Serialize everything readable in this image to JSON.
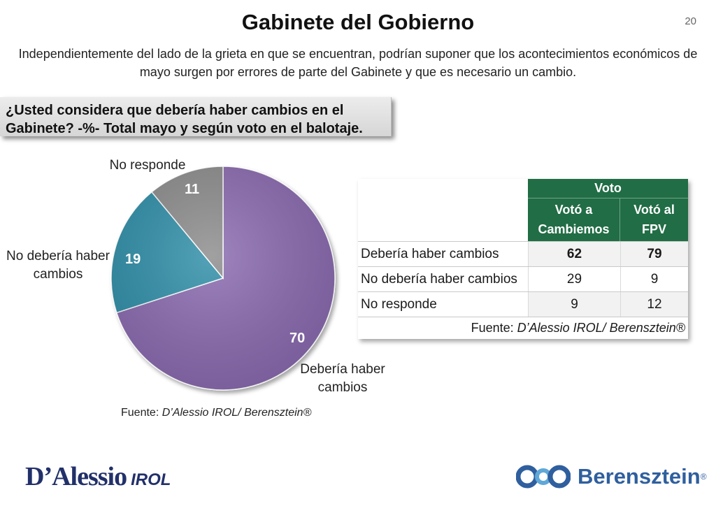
{
  "header": {
    "title": "Gabinete del Gobierno",
    "page_number": "20",
    "subtitle": "Independientemente del lado de la grieta en que se encuentran,  podrían suponer que los acontecimientos económicos de mayo surgen por errores de parte del Gabinete y que es necesario un cambio."
  },
  "question": "¿Usted considera que debería haber cambios en el Gabinete? -%- Total mayo y según voto en el balotaje.",
  "pie": {
    "labels": {
      "no_responde": "No responde",
      "no_deberia": "No debería haber cambios",
      "deberia": "Debería haber cambios"
    },
    "values_text": {
      "deberia": "70",
      "no_deberia": "19",
      "no_responde": "11"
    },
    "source_prefix": "Fuente: ",
    "source_name": "D’Alessio IROL/ Berensztein®"
  },
  "chart_data": [
    {
      "type": "pie",
      "categories": [
        "Debería haber cambios",
        "No debería haber cambios",
        "No responde"
      ],
      "values": [
        70,
        19,
        11
      ],
      "colors": [
        "#8a6bb0",
        "#2f8ea8",
        "#8c8c8c"
      ]
    },
    {
      "type": "table",
      "group_header": "Voto",
      "columns": [
        "Votó a Cambiemos",
        "Votó al FPV"
      ],
      "rows": [
        {
          "label": "Debería haber cambios",
          "values": [
            62,
            79
          ]
        },
        {
          "label": "No debería haber cambios",
          "values": [
            29,
            9
          ]
        },
        {
          "label": "No responde",
          "values": [
            9,
            12
          ]
        }
      ]
    }
  ],
  "table": {
    "group_header": "Voto",
    "col1": "Votó a Cambiemos",
    "col2": "Votó al FPV",
    "rows": [
      {
        "label": "Debería haber cambios",
        "v1": "62",
        "v2": "79"
      },
      {
        "label": "No debería haber cambios",
        "v1": "29",
        "v2": "9"
      },
      {
        "label": "No responde",
        "v1": "9",
        "v2": "12"
      }
    ],
    "source_prefix": "Fuente: ",
    "source_name": "D’Alessio IROL/ Berensztein®"
  },
  "logos": {
    "dalessio": "D’Alessio",
    "irol": "IROL",
    "berensztein": "Berensztein",
    "reg": "®"
  },
  "colors": {
    "table_header": "#216d45",
    "brand_blue": "#2f5f9e",
    "dalessio_navy": "#22306a"
  }
}
